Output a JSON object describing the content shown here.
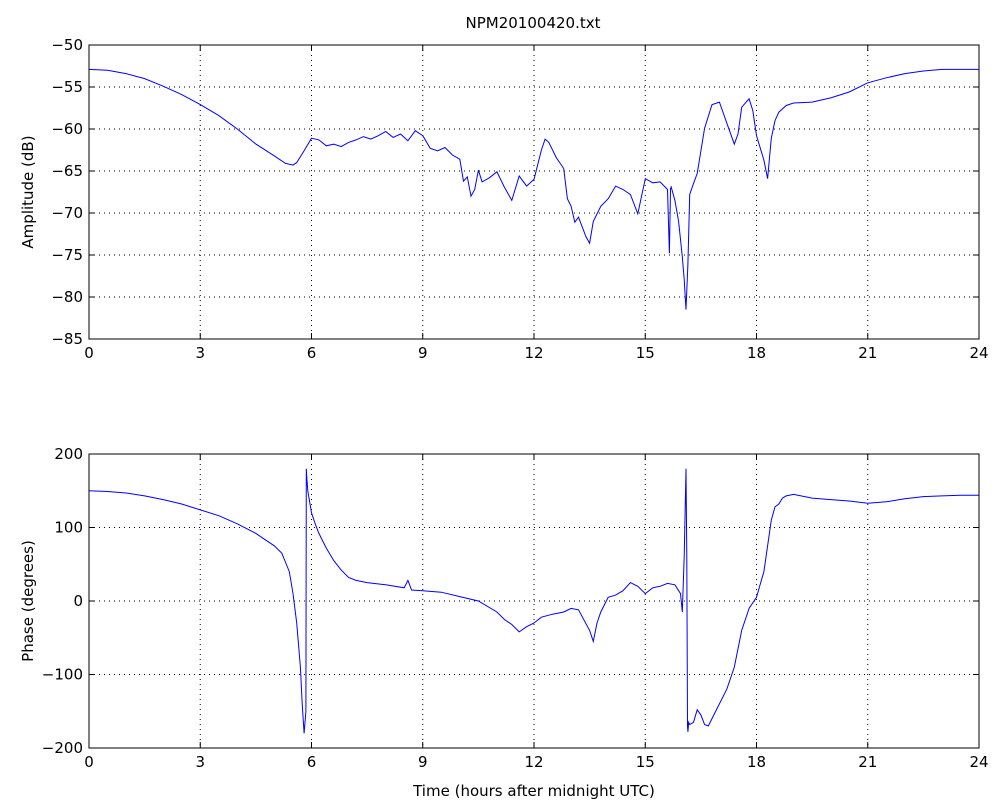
{
  "figure": {
    "title": "NPM20100420.txt"
  },
  "chart_data": [
    {
      "type": "line",
      "title": "NPM20100420.txt",
      "xlabel": "",
      "ylabel": "Amplitude (dB)",
      "xlim": [
        0,
        24
      ],
      "ylim": [
        -85,
        -50
      ],
      "xticks": [
        0,
        3,
        6,
        9,
        12,
        15,
        18,
        21,
        24
      ],
      "yticks": [
        -85,
        -80,
        -75,
        -70,
        -65,
        -60,
        -55,
        -50
      ],
      "xtick_labels": [
        "0",
        "3",
        "6",
        "9",
        "12",
        "15",
        "18",
        "21",
        "24"
      ],
      "ytick_labels": [
        "−85",
        "−80",
        "−75",
        "−70",
        "−65",
        "−60",
        "−55",
        "−50"
      ],
      "grid": true,
      "color": "#0000ff",
      "series": [
        {
          "x": [
            0,
            0.5,
            1,
            1.5,
            2,
            2.5,
            3,
            3.5,
            4,
            4.5,
            5,
            5.3,
            5.5,
            5.6,
            5.8,
            6.0,
            6.2,
            6.4,
            6.6,
            6.8,
            7.0,
            7.2,
            7.4,
            7.6,
            7.8,
            8.0,
            8.2,
            8.4,
            8.6,
            8.8,
            9.0,
            9.2,
            9.4,
            9.6,
            9.8,
            10.0,
            10.1,
            10.2,
            10.3,
            10.4,
            10.5,
            10.6,
            10.8,
            11.0,
            11.2,
            11.4,
            11.6,
            11.8,
            12.0,
            12.2,
            12.3,
            12.4,
            12.6,
            12.8,
            12.9,
            13.0,
            13.1,
            13.2,
            13.4,
            13.5,
            13.6,
            13.8,
            14.0,
            14.2,
            14.4,
            14.6,
            14.8,
            15.0,
            15.2,
            15.4,
            15.6,
            15.65,
            15.68,
            15.7,
            15.8,
            15.9,
            16.0,
            16.05,
            16.1,
            16.15,
            16.2,
            16.3,
            16.4,
            16.6,
            16.8,
            17.0,
            17.2,
            17.4,
            17.5,
            17.6,
            17.8,
            17.9,
            18.0,
            18.2,
            18.3,
            18.4,
            18.5,
            18.6,
            18.8,
            19.0,
            19.5,
            20.0,
            20.5,
            21.0,
            21.5,
            22.0,
            22.5,
            23.0,
            23.5,
            24.0
          ],
          "y": [
            -52.9,
            -53.0,
            -53.4,
            -54.0,
            -54.9,
            -55.9,
            -57.1,
            -58.4,
            -60.0,
            -61.8,
            -63.2,
            -64.1,
            -64.3,
            -64.0,
            -62.6,
            -61.1,
            -61.3,
            -62.0,
            -61.8,
            -62.1,
            -61.6,
            -61.3,
            -60.9,
            -61.2,
            -60.8,
            -60.3,
            -61.0,
            -60.6,
            -61.4,
            -60.2,
            -60.8,
            -62.3,
            -62.6,
            -62.2,
            -63.1,
            -63.6,
            -66.2,
            -65.7,
            -68.0,
            -67.2,
            -64.9,
            -66.3,
            -65.8,
            -65.1,
            -66.9,
            -68.5,
            -65.6,
            -66.8,
            -66.0,
            -62.5,
            -61.2,
            -61.6,
            -63.4,
            -64.7,
            -68.3,
            -69.2,
            -71.1,
            -70.5,
            -72.8,
            -73.6,
            -71.0,
            -69.2,
            -68.3,
            -66.8,
            -67.2,
            -67.8,
            -70.1,
            -65.9,
            -66.4,
            -66.3,
            -67.2,
            -74.8,
            -67.1,
            -66.9,
            -68.5,
            -71.0,
            -75.2,
            -77.9,
            -81.5,
            -76.1,
            -67.8,
            -66.5,
            -65.3,
            -59.9,
            -57.1,
            -56.8,
            -59.3,
            -61.8,
            -60.6,
            -57.4,
            -56.4,
            -57.8,
            -60.8,
            -63.7,
            -65.9,
            -61.1,
            -59.0,
            -58.0,
            -57.2,
            -56.9,
            -56.8,
            -56.3,
            -55.6,
            -54.5,
            -53.9,
            -53.4,
            -53.1,
            -52.9,
            -52.9,
            -52.9
          ]
        }
      ]
    },
    {
      "type": "line",
      "title": "",
      "xlabel": "Time (hours after midnight UTC)",
      "ylabel": "Phase (degrees)",
      "xlim": [
        0,
        24
      ],
      "ylim": [
        -200,
        200
      ],
      "xticks": [
        0,
        3,
        6,
        9,
        12,
        15,
        18,
        21,
        24
      ],
      "yticks": [
        -200,
        -100,
        0,
        100,
        200
      ],
      "xtick_labels": [
        "0",
        "3",
        "6",
        "9",
        "12",
        "15",
        "18",
        "21",
        "24"
      ],
      "ytick_labels": [
        "−200",
        "−100",
        "0",
        "100",
        "200"
      ],
      "grid": true,
      "color": "#0000ff",
      "series": [
        {
          "x": [
            0,
            0.5,
            1.0,
            1.5,
            2.0,
            2.5,
            3.0,
            3.5,
            4.0,
            4.5,
            5.0,
            5.2,
            5.4,
            5.5,
            5.6,
            5.7,
            5.75,
            5.8,
            5.85,
            5.86,
            5.87,
            5.9,
            6.0,
            6.1,
            6.2,
            6.4,
            6.6,
            6.8,
            7.0,
            7.2,
            7.5,
            8.0,
            8.5,
            8.6,
            8.7,
            9.0,
            9.5,
            10.0,
            10.5,
            11.0,
            11.2,
            11.4,
            11.6,
            11.8,
            12.0,
            12.2,
            12.5,
            12.8,
            13.0,
            13.2,
            13.5,
            13.6,
            13.7,
            13.8,
            14.0,
            14.2,
            14.4,
            14.6,
            14.8,
            15.0,
            15.2,
            15.4,
            15.6,
            15.8,
            15.95,
            16.0,
            16.05,
            16.1,
            16.12,
            16.14,
            16.15,
            16.16,
            16.17,
            16.2,
            16.3,
            16.4,
            16.5,
            16.6,
            16.7,
            16.8,
            17.0,
            17.2,
            17.4,
            17.6,
            17.8,
            18.0,
            18.2,
            18.4,
            18.5,
            18.6,
            18.7,
            18.8,
            19.0,
            19.5,
            20.0,
            20.5,
            21.0,
            21.5,
            22.0,
            22.5,
            23.0,
            23.5,
            24.0
          ],
          "y": [
            150,
            149,
            147,
            143,
            138,
            132,
            124,
            116,
            105,
            92,
            75,
            65,
            40,
            10,
            -30,
            -90,
            -140,
            -180,
            -150,
            180,
            170,
            150,
            120,
            105,
            92,
            72,
            55,
            42,
            32,
            28,
            25,
            22,
            18,
            28,
            15,
            14,
            12,
            6,
            0,
            -15,
            -25,
            -32,
            -42,
            -35,
            -30,
            -22,
            -18,
            -15,
            -10,
            -12,
            -40,
            -55,
            -30,
            -15,
            5,
            8,
            14,
            25,
            20,
            10,
            18,
            20,
            24,
            22,
            10,
            -15,
            60,
            180,
            60,
            -170,
            -178,
            -172,
            -165,
            -168,
            -165,
            -148,
            -155,
            -168,
            -170,
            -160,
            -140,
            -120,
            -90,
            -40,
            -10,
            5,
            40,
            110,
            128,
            132,
            140,
            143,
            145,
            140,
            138,
            136,
            133,
            135,
            139,
            142,
            143,
            144,
            144
          ]
        }
      ]
    }
  ]
}
